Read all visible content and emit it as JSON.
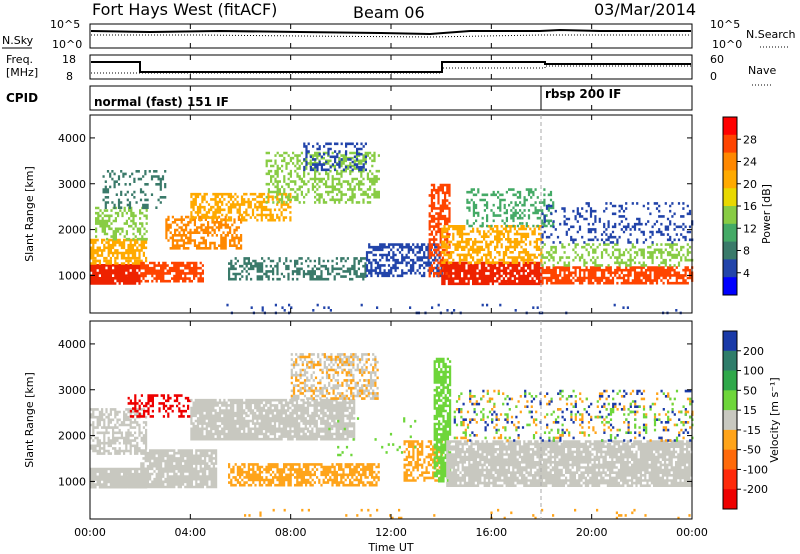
{
  "header": {
    "station": "Fort Hays West (fitACF)",
    "beam": "Beam 06",
    "date": "03/Mar/2014"
  },
  "top_panels": {
    "nsky_label": "N.Sky",
    "nsky_ticks": [
      "10^5",
      "10^0"
    ],
    "nsearch_label": "N.Search",
    "nsearch_ticks": [
      "10^5",
      "10^0"
    ],
    "freq_label_1": "Freq.",
    "freq_label_2": "[MHz]",
    "freq_ticks": [
      "18",
      "8"
    ],
    "nave_label": "Nave",
    "nave_ticks": [
      "60",
      "0"
    ],
    "cpid_label": "CPID",
    "modes": [
      {
        "label": "normal (fast) 151 IF",
        "start_hour": 0
      },
      {
        "label": "rbsp 200 IF",
        "start_hour": 18
      }
    ]
  },
  "chart_data": [
    {
      "type": "heatmap",
      "name": "Power",
      "ylabel": "Slant Range [km]",
      "ylim": [
        180,
        4500
      ],
      "yticks": [
        1000,
        2000,
        3000,
        4000
      ],
      "xlim_hours": [
        0,
        24
      ],
      "colorbar": {
        "label": "Power [dB]",
        "ticks": [
          "28",
          "24",
          "20",
          "16",
          "12",
          "8",
          "4"
        ],
        "colors": [
          "#ff0000",
          "#ff4400",
          "#ff8800",
          "#ffaa00",
          "#e8d800",
          "#88cc44",
          "#44aa66",
          "#3a7a6a",
          "#2244aa",
          "#0000ff"
        ]
      }
    },
    {
      "type": "heatmap",
      "name": "Velocity",
      "ylabel": "Slant Range [km]",
      "ylim": [
        180,
        4500
      ],
      "yticks": [
        1000,
        2000,
        3000,
        4000
      ],
      "xlim_hours": [
        0,
        24
      ],
      "colorbar": {
        "label": "Velocity [m s⁻¹]",
        "ticks": [
          "200",
          "100",
          "50",
          "15",
          "-15",
          "-50",
          "-100",
          "-200"
        ],
        "colors": [
          "#1a3aa8",
          "#2f7d6a",
          "#2fa84a",
          "#6ed63a",
          "#c8c8c0",
          "#ffa41a",
          "#ff6a0a",
          "#ff2a0a",
          "#ee0000"
        ]
      }
    }
  ],
  "xaxis": {
    "label": "Time UT",
    "ticks": [
      "00:00",
      "04:00",
      "08:00",
      "12:00",
      "16:00",
      "20:00",
      "00:00"
    ]
  },
  "scatter_regions": [
    {
      "panel": 0,
      "h0": 0.0,
      "h1": 2.0,
      "r0": 850,
      "r1": 1250,
      "color": "#ee2200",
      "density": 0.9
    },
    {
      "panel": 0,
      "h0": 0.0,
      "h1": 2.2,
      "r0": 1250,
      "r1": 1800,
      "color": "#ffaa00",
      "density": 0.7
    },
    {
      "panel": 0,
      "h0": 0.2,
      "h1": 2.3,
      "r0": 1800,
      "r1": 2500,
      "color": "#88cc44",
      "density": 0.45
    },
    {
      "panel": 0,
      "h0": 0.5,
      "h1": 3.0,
      "r0": 2500,
      "r1": 3300,
      "color": "#3a7a6a",
      "density": 0.25
    },
    {
      "panel": 0,
      "h0": 2.0,
      "h1": 4.5,
      "r0": 900,
      "r1": 1300,
      "color": "#ff4400",
      "density": 0.75
    },
    {
      "panel": 0,
      "h0": 3.0,
      "h1": 6.0,
      "r0": 1600,
      "r1": 2300,
      "color": "#ff8800",
      "density": 0.55
    },
    {
      "panel": 0,
      "h0": 4.0,
      "h1": 8.0,
      "r0": 2200,
      "r1": 2800,
      "color": "#ffaa00",
      "density": 0.55
    },
    {
      "panel": 0,
      "h0": 7.0,
      "h1": 11.5,
      "r0": 2600,
      "r1": 3700,
      "color": "#88cc44",
      "density": 0.45
    },
    {
      "panel": 0,
      "h0": 8.5,
      "h1": 11.0,
      "r0": 3300,
      "r1": 3900,
      "color": "#2244aa",
      "density": 0.35
    },
    {
      "panel": 0,
      "h0": 5.5,
      "h1": 11.0,
      "r0": 900,
      "r1": 1400,
      "color": "#3a7a6a",
      "density": 0.4
    },
    {
      "panel": 0,
      "h0": 11.0,
      "h1": 14.0,
      "r0": 1000,
      "r1": 1700,
      "color": "#2244aa",
      "density": 0.55
    },
    {
      "panel": 0,
      "h0": 13.5,
      "h1": 14.3,
      "r0": 1000,
      "r1": 3000,
      "color": "#ff4400",
      "density": 0.6
    },
    {
      "panel": 0,
      "h0": 14.0,
      "h1": 18.0,
      "r0": 800,
      "r1": 1300,
      "color": "#ee2200",
      "density": 0.85
    },
    {
      "panel": 0,
      "h0": 14.0,
      "h1": 18.0,
      "r0": 1300,
      "r1": 2100,
      "color": "#ffaa00",
      "density": 0.55
    },
    {
      "panel": 0,
      "h0": 15.0,
      "h1": 18.5,
      "r0": 2100,
      "r1": 2900,
      "color": "#44aa66",
      "density": 0.3
    },
    {
      "panel": 0,
      "h0": 18.0,
      "h1": 24.0,
      "r0": 850,
      "r1": 1200,
      "color": "#ff4400",
      "density": 0.75
    },
    {
      "panel": 0,
      "h0": 18.0,
      "h1": 24.0,
      "r0": 1200,
      "r1": 1700,
      "color": "#88cc44",
      "density": 0.4
    },
    {
      "panel": 0,
      "h0": 18.0,
      "h1": 24.0,
      "r0": 1700,
      "r1": 2600,
      "color": "#2244aa",
      "density": 0.22
    },
    {
      "panel": 0,
      "h0": 5.0,
      "h1": 24.0,
      "r0": 200,
      "r1": 380,
      "color": "#2244aa",
      "density": 0.05
    },
    {
      "panel": 1,
      "h0": 0.0,
      "h1": 2.2,
      "r0": 850,
      "r1": 1300,
      "color": "#c8c8c0",
      "density": 0.9
    },
    {
      "panel": 1,
      "h0": 0.0,
      "h1": 2.2,
      "r0": 1600,
      "r1": 2600,
      "color": "#c8c8c0",
      "density": 0.6
    },
    {
      "panel": 1,
      "h0": 1.5,
      "h1": 4.0,
      "r0": 2400,
      "r1": 2900,
      "color": "#ee0000",
      "density": 0.35
    },
    {
      "panel": 1,
      "h0": 2.0,
      "h1": 5.0,
      "r0": 900,
      "r1": 1700,
      "color": "#c8c8c0",
      "density": 0.85
    },
    {
      "panel": 1,
      "h0": 4.0,
      "h1": 10.5,
      "r0": 1900,
      "r1": 2800,
      "color": "#c8c8c0",
      "density": 0.85
    },
    {
      "panel": 1,
      "h0": 8.0,
      "h1": 11.5,
      "r0": 2800,
      "r1": 3800,
      "color": "#c8c8c0",
      "density": 0.45
    },
    {
      "panel": 1,
      "h0": 8.0,
      "h1": 11.5,
      "r0": 2800,
      "r1": 3800,
      "color": "#ffa41a",
      "density": 0.2
    },
    {
      "panel": 1,
      "h0": 5.5,
      "h1": 11.5,
      "r0": 900,
      "r1": 1400,
      "color": "#ffa41a",
      "density": 0.65
    },
    {
      "panel": 1,
      "h0": 12.5,
      "h1": 14.0,
      "r0": 1000,
      "r1": 1900,
      "color": "#ffa41a",
      "density": 0.55
    },
    {
      "panel": 1,
      "h0": 13.7,
      "h1": 14.4,
      "r0": 1000,
      "r1": 3700,
      "color": "#6ed63a",
      "density": 0.75
    },
    {
      "panel": 1,
      "h0": 14.2,
      "h1": 24.0,
      "r0": 900,
      "r1": 1900,
      "color": "#c8c8c0",
      "density": 0.85
    },
    {
      "panel": 1,
      "h0": 14.5,
      "h1": 24.0,
      "r0": 1900,
      "r1": 3000,
      "color": "#1a3aa8",
      "density": 0.08
    },
    {
      "panel": 1,
      "h0": 14.5,
      "h1": 24.0,
      "r0": 1900,
      "r1": 3000,
      "color": "#ffa41a",
      "density": 0.08
    },
    {
      "panel": 1,
      "h0": 14.5,
      "h1": 24.0,
      "r0": 1900,
      "r1": 3000,
      "color": "#6ed63a",
      "density": 0.06
    },
    {
      "panel": 1,
      "h0": 5.0,
      "h1": 24.0,
      "r0": 200,
      "r1": 400,
      "color": "#ffa41a",
      "density": 0.04
    },
    {
      "panel": 1,
      "h0": 9.5,
      "h1": 13.0,
      "r0": 1600,
      "r1": 2400,
      "color": "#6ed63a",
      "density": 0.05
    }
  ]
}
